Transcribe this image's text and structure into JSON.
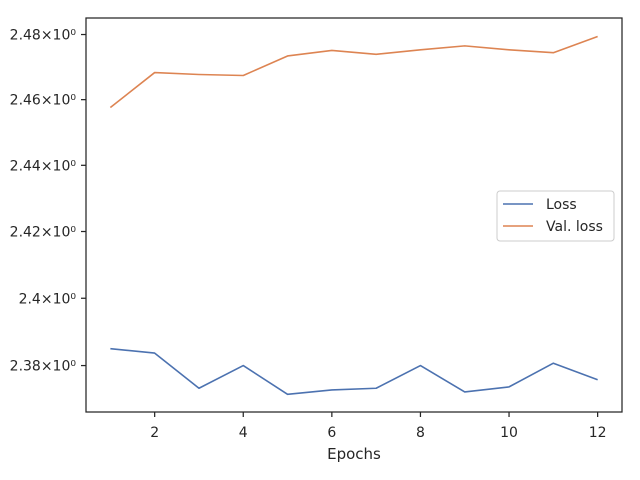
{
  "chart_data": {
    "type": "line",
    "title": "",
    "xlabel": "Epochs",
    "ylabel": "",
    "x": [
      1,
      2,
      3,
      4,
      5,
      6,
      7,
      8,
      9,
      10,
      11,
      12
    ],
    "series": [
      {
        "name": "Loss",
        "color": "#4c72b0",
        "values": [
          2.385,
          2.3837,
          2.3733,
          2.38,
          2.3715,
          2.3728,
          2.3733,
          2.38,
          2.3722,
          2.3737,
          2.3807,
          2.3758
        ]
      },
      {
        "name": "Val. loss",
        "color": "#dd8452",
        "values": [
          2.4576,
          2.4683,
          2.4677,
          2.4674,
          2.4734,
          2.4751,
          2.4739,
          2.4753,
          2.4765,
          2.4753,
          2.4744,
          2.4794
        ]
      }
    ],
    "xlim": [
      0.45,
      12.55
    ],
    "ylim": [
      2.3663,
      2.4851
    ],
    "y_scale": "log",
    "xticks": [
      2,
      4,
      6,
      8,
      10,
      12
    ],
    "xtick_labels": [
      "2",
      "4",
      "6",
      "8",
      "10",
      "12"
    ],
    "yticks": [
      2.38,
      2.4,
      2.42,
      2.44,
      2.46,
      2.48
    ],
    "ytick_labels": [
      "2.38×10⁰",
      "2.4×10⁰",
      "2.42×10⁰",
      "2.44×10⁰",
      "2.46×10⁰",
      "2.48×10⁰"
    ],
    "grid": false,
    "legend_position": "center-right"
  }
}
